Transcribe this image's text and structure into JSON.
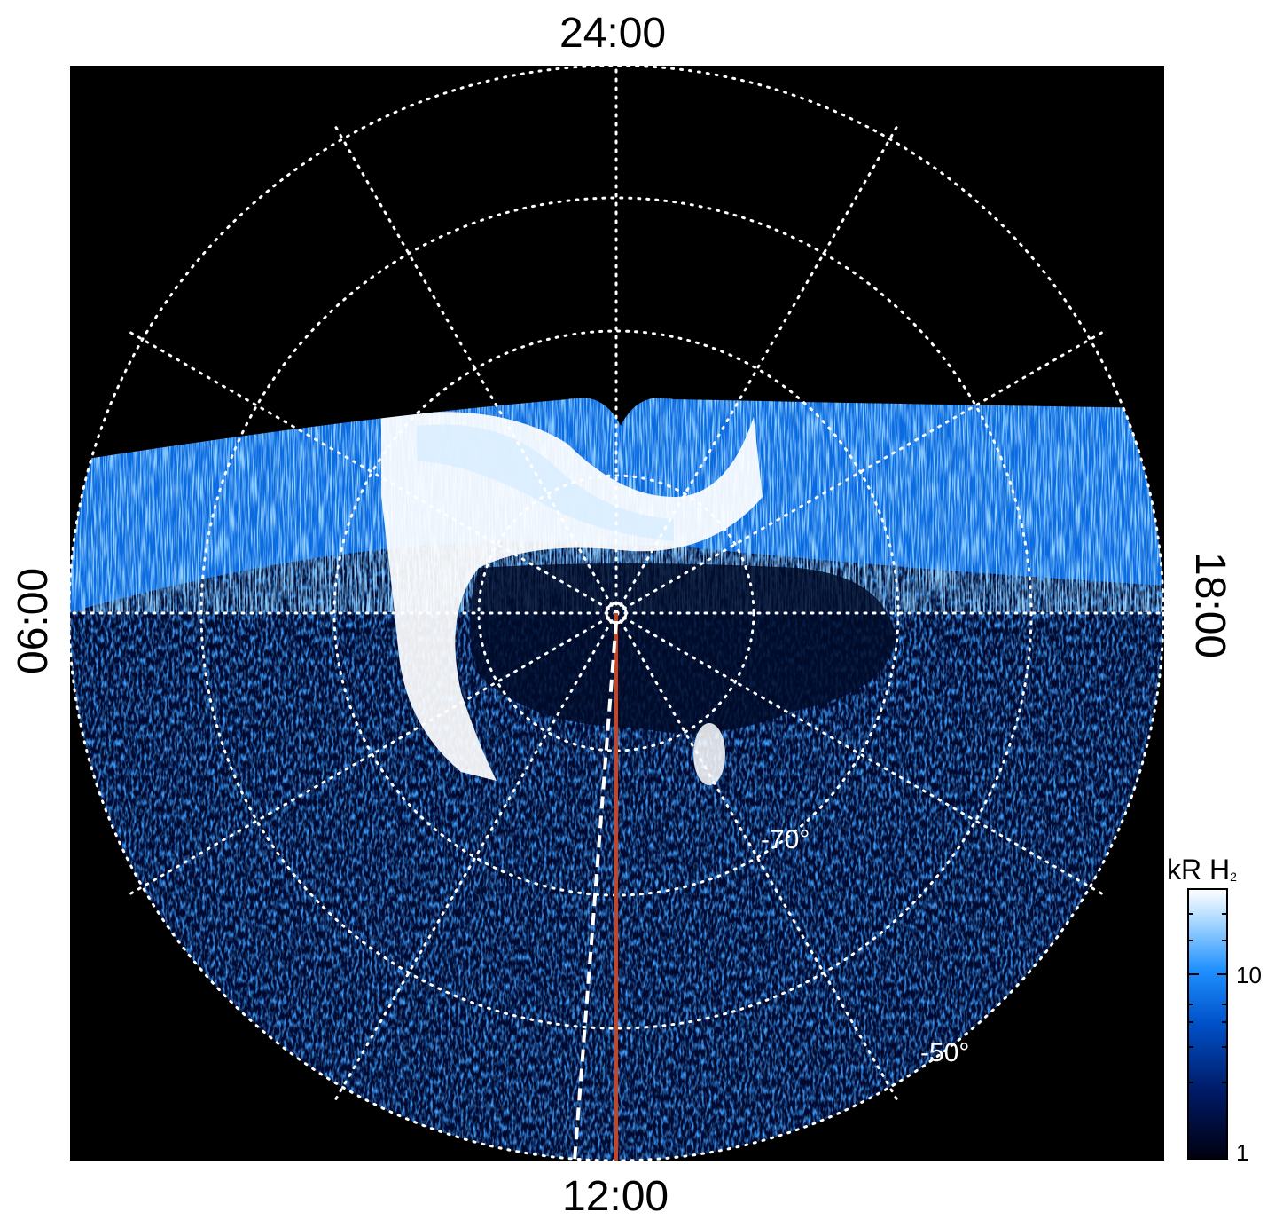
{
  "local_time_labels": {
    "top": "24:00",
    "bottom": "12:00",
    "left": "06:00",
    "right": "18:00"
  },
  "latitude_labels": [
    "-70°",
    "-50°"
  ],
  "colorbar": {
    "unit_main": "kR H",
    "unit_sub": "2",
    "tick_labels": [
      "10",
      "1"
    ],
    "colors": [
      "#000010",
      "#001a66",
      "#0050c8",
      "#1e90ff",
      "#a8d8ff",
      "#ffffff"
    ]
  },
  "colors": {
    "background": "#000000",
    "grid": "#ffffff",
    "meridian_line": "#d0421b",
    "frame": "#ffffff"
  }
}
